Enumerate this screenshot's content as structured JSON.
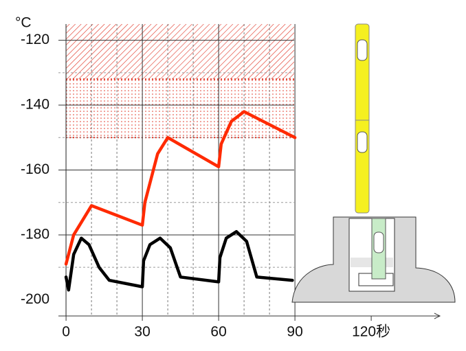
{
  "chart_data": {
    "type": "line",
    "y_label": "°C",
    "xlim": [
      -3,
      147
    ],
    "ylim": [
      -205,
      -115
    ],
    "xticks": [
      0,
      30,
      60,
      90,
      {
        "value": 120,
        "label": "120秒"
      }
    ],
    "yticks": [
      -120,
      -140,
      -160,
      -180,
      -200
    ],
    "x_minor_ticks": [
      10,
      20,
      40,
      50,
      70,
      80
    ],
    "y_minor_ticks": [
      -130,
      -150,
      -170,
      -190
    ],
    "grid": true,
    "bands": [
      {
        "from": -115,
        "to": -132,
        "pattern": "hatch",
        "color": "#e03020"
      },
      {
        "from": -132,
        "to": -150,
        "pattern": "dots",
        "color": "#e03020"
      }
    ],
    "series": [
      {
        "name": "red",
        "color": "#ff2a00",
        "x": [
          0,
          3,
          10,
          30,
          31,
          36,
          40,
          60,
          61,
          65,
          70,
          90
        ],
        "values": [
          -189,
          -180,
          -171,
          -177,
          -170,
          -155,
          -150,
          -159,
          -152,
          -145,
          -142,
          -150
        ]
      },
      {
        "name": "black",
        "color": "#000000",
        "x": [
          0,
          1,
          3,
          6,
          9,
          13,
          17,
          30,
          30.5,
          33,
          37,
          41,
          45,
          60,
          60.5,
          63,
          67,
          71,
          75,
          89
        ],
        "values": [
          -193,
          -197,
          -186,
          -181,
          -183,
          -190,
          -194,
          -196,
          -188,
          -183,
          -181,
          -184,
          -193,
          -194.5,
          -187,
          -181,
          -179,
          -182,
          -193,
          -194
        ]
      }
    ]
  }
}
